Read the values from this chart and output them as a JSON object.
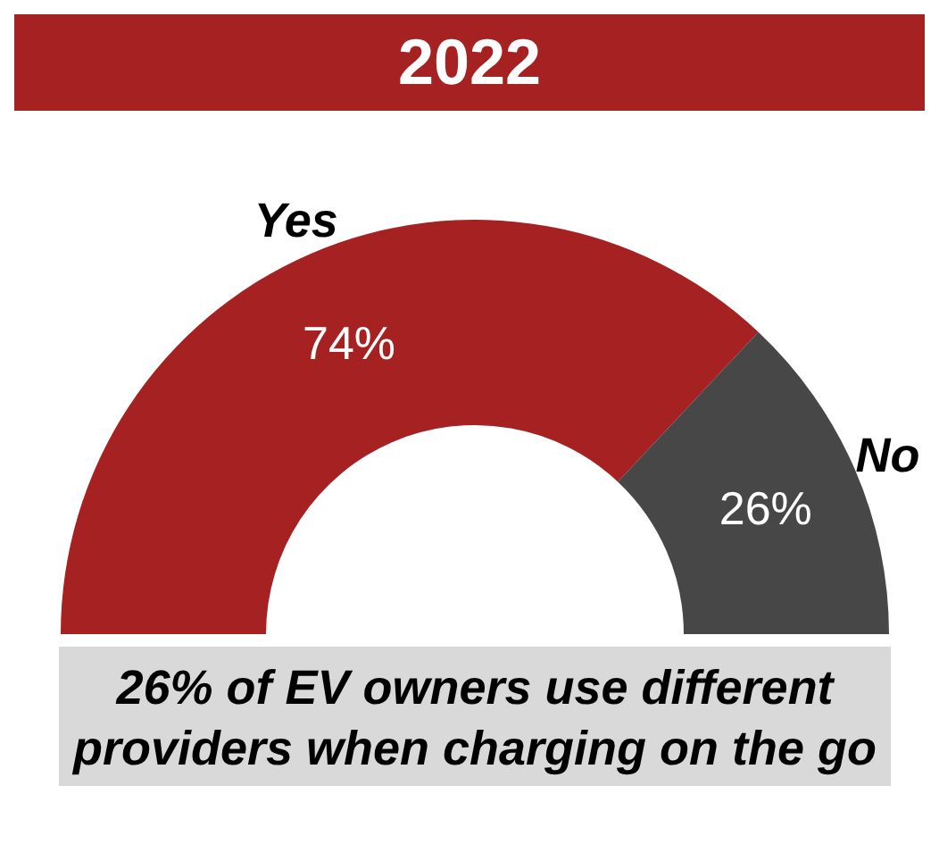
{
  "chart_data": {
    "type": "donut",
    "title": "2022",
    "categories": [
      "Yes",
      "No"
    ],
    "values": [
      74,
      26
    ],
    "value_labels": [
      "74%",
      "26%"
    ],
    "colors": [
      "#a52122",
      "#474747"
    ],
    "annotations": [
      "26% of EV owners use different providers when charging on the go"
    ]
  }
}
